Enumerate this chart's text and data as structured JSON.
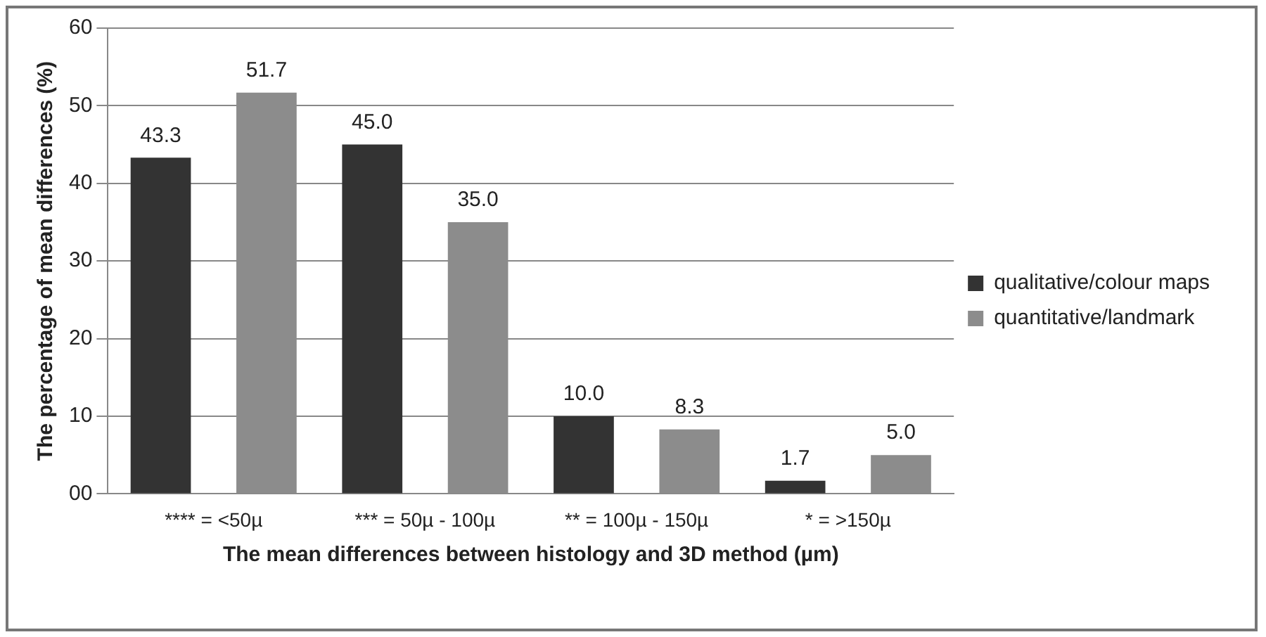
{
  "chart_data": {
    "type": "bar",
    "xlabel": "The mean differences between histology and 3D method (µm)",
    "ylabel": "The percentage of mean differences (%)",
    "categories": [
      "**** = <50µ",
      "*** = 50µ - 100µ",
      "** = 100µ - 150µ",
      "* = >150µ"
    ],
    "series": [
      {
        "name": "qualitative/colour maps",
        "color": "#333333",
        "values": [
          43.3,
          45.0,
          10.0,
          1.7
        ],
        "value_labels": [
          "43.3",
          "45.0",
          "10.0",
          "1.7"
        ]
      },
      {
        "name": "quantitative/landmark",
        "color": "#8c8c8c",
        "values": [
          51.7,
          35.0,
          8.3,
          5.0
        ],
        "value_labels": [
          "51.7",
          "35.0",
          "8.3",
          "5.0"
        ]
      }
    ],
    "ylim": [
      0,
      60
    ],
    "yticks": [
      {
        "value": 0,
        "label": "00"
      },
      10,
      20,
      30,
      40,
      50,
      60
    ],
    "grid": "y",
    "legend": "right"
  }
}
